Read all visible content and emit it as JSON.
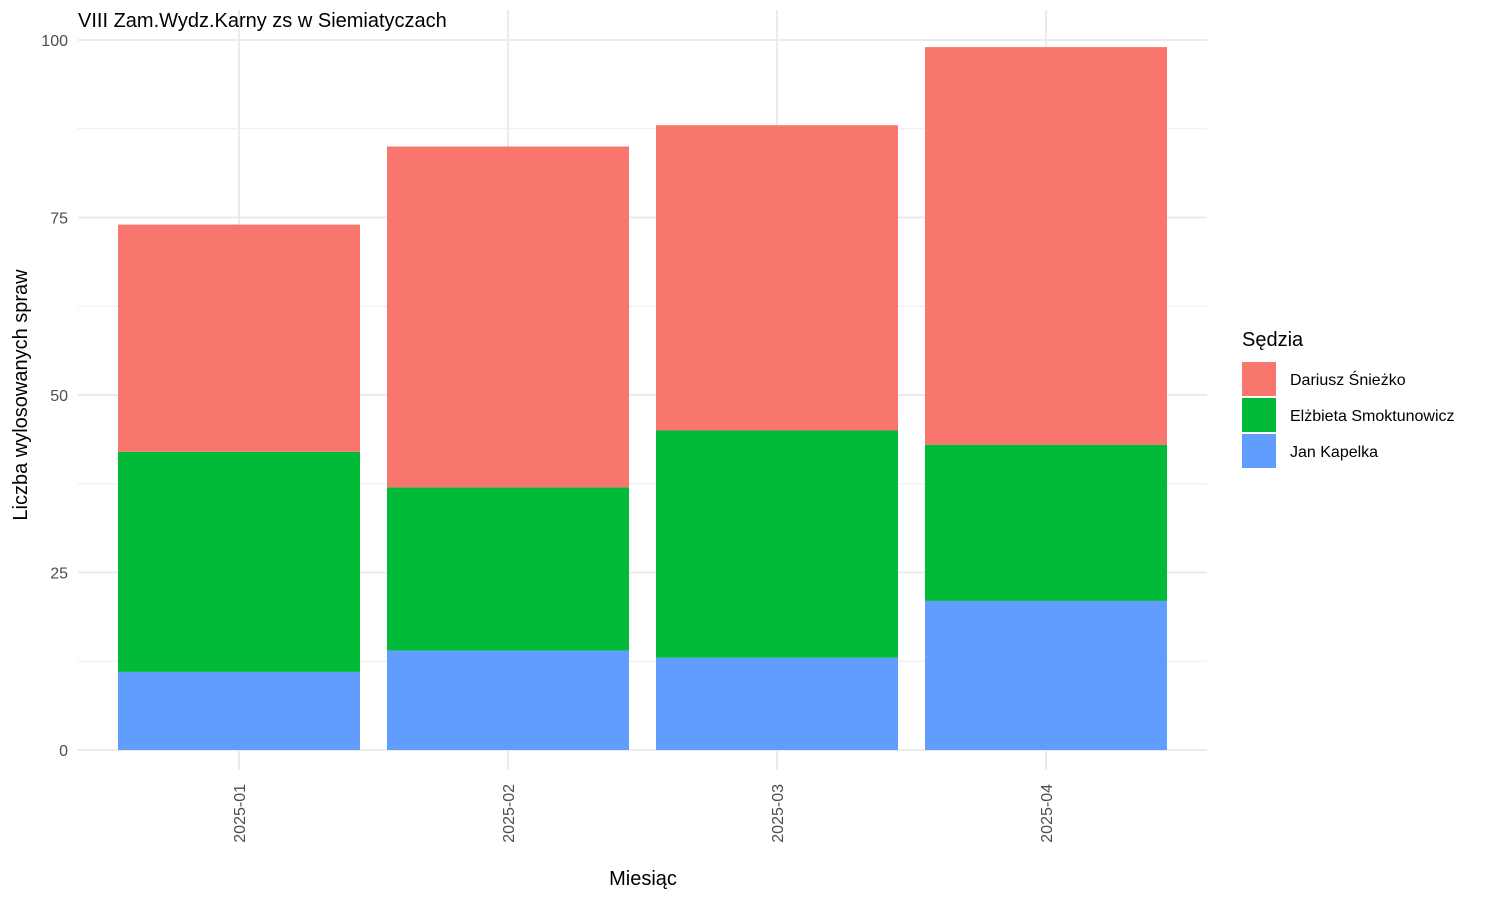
{
  "chart_data": {
    "type": "bar",
    "stacked": true,
    "title": "VIII Zam.Wydz.Karny zs w Siemiatyczach",
    "xlabel": "Miesiąc",
    "ylabel": "Liczba wylosowanych spraw",
    "categories": [
      "2025-01",
      "2025-02",
      "2025-03",
      "2025-04"
    ],
    "ylim": [
      0,
      100
    ],
    "yticks": [
      0,
      25,
      50,
      75,
      100
    ],
    "grid": true,
    "legend": {
      "title": "Sędzia",
      "position": "right"
    },
    "series": [
      {
        "name": "Jan Kapelka",
        "color": "#619CFF",
        "values": [
          11,
          14,
          13,
          21
        ]
      },
      {
        "name": "Elżbieta Smoktunowicz",
        "color": "#00BA38",
        "values": [
          31,
          23,
          32,
          22
        ]
      },
      {
        "name": "Dariusz Śnieżko",
        "color": "#F8766D",
        "values": [
          32,
          48,
          43,
          56
        ]
      }
    ],
    "legend_order": [
      "Dariusz Śnieżko",
      "Elżbieta Smoktunowicz",
      "Jan Kapelka"
    ]
  }
}
